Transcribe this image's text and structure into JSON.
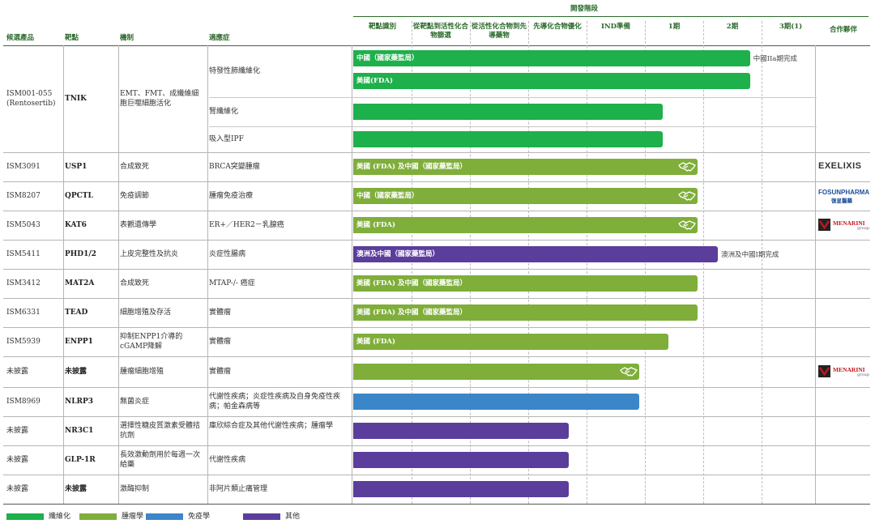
{
  "header": {
    "stage_group": "開發階段",
    "candidate": "候選產品",
    "target": "靶點",
    "mechanism": "機制",
    "indication": "適應症",
    "partner": "合作夥伴",
    "stages": [
      "靶點識別",
      "從靶點到活性化合物篩選",
      "從活性化合物到先導藥物",
      "先導化合物優化",
      "IND準備",
      "1期",
      "2期",
      "3期(1)"
    ]
  },
  "colors": {
    "fibrosis": "#1db04b",
    "oncology": "#7fae3a",
    "immunology": "#3b86c8",
    "other": "#5b3d9c",
    "header_text": "#2b6a2b"
  },
  "partners": {
    "exelixis": "EXELIXIS",
    "fosun_main": "FOSUNPHARMA",
    "fosun_sub": "復星醫藥",
    "menarini": "MENARINI",
    "menarini_sub": "group"
  },
  "rows": [
    {
      "candidate": "ISM001-055",
      "candidate_sub": "(Rentosertib)",
      "target": "TNIK",
      "mechanism": "EMT、FMT、成纖維細胞巨噬細胞活化",
      "indications": [
        {
          "text": "特發性肺纖維化",
          "bars": [
            {
              "label": "中國（國家藥監局）",
              "end": 6.8,
              "category": "fibrosis",
              "note": "中國IIa期完成"
            },
            {
              "label": "美國(FDA)",
              "end": 6.8,
              "category": "fibrosis"
            }
          ]
        },
        {
          "text": "腎纖維化",
          "bars": [
            {
              "label": "",
              "end": 5.3,
              "category": "fibrosis"
            }
          ]
        },
        {
          "text": "吸入型IPF",
          "bars": [
            {
              "label": "",
              "end": 5.3,
              "category": "fibrosis"
            }
          ]
        }
      ]
    },
    {
      "candidate": "ISM3091",
      "target": "USP1",
      "mechanism": "合成致死",
      "partner": "exelixis",
      "indications": [
        {
          "text": "BRCA突變腫瘤",
          "bars": [
            {
              "label": "美國 (FDA) 及中國（國家藥監局）",
              "end": 5.9,
              "category": "oncology",
              "deal": true
            }
          ]
        }
      ]
    },
    {
      "candidate": "ISM8207",
      "target": "QPCTL",
      "mechanism": "免疫調節",
      "partner": "fosun",
      "indications": [
        {
          "text": "腫瘤免疫治療",
          "bars": [
            {
              "label": "中國（國家藥監局）",
              "end": 5.9,
              "category": "oncology",
              "deal": true
            }
          ]
        }
      ]
    },
    {
      "candidate": "ISM5043",
      "target": "KAT6",
      "mechanism": "表觀遺傳學",
      "partner": "menarini",
      "indications": [
        {
          "text": "ER+／HER2－乳腺癌",
          "bars": [
            {
              "label": "美國 (FDA)",
              "end": 5.9,
              "category": "oncology",
              "deal": true
            }
          ]
        }
      ]
    },
    {
      "candidate": "ISM5411",
      "target": "PHD1/2",
      "mechanism": "上皮完整性及抗炎",
      "indications": [
        {
          "text": "炎症性腸病",
          "bars": [
            {
              "label": "澳洲及中國（國家藥監局）",
              "end": 6.25,
              "category": "other",
              "note": "澳洲及中國I期完成"
            }
          ]
        }
      ]
    },
    {
      "candidate": "ISM3412",
      "target": "MAT2A",
      "mechanism": "合成致死",
      "indications": [
        {
          "text": "MTAP-/- 癌症",
          "bars": [
            {
              "label": "美國 (FDA) 及中國（國家藥監局）",
              "end": 5.9,
              "category": "oncology"
            }
          ]
        }
      ]
    },
    {
      "candidate": "ISM6331",
      "target": "TEAD",
      "mechanism": "細胞增殖及存活",
      "indications": [
        {
          "text": "實體瘤",
          "bars": [
            {
              "label": "美國 (FDA) 及中國（國家藥監局）",
              "end": 5.9,
              "category": "oncology"
            }
          ]
        }
      ]
    },
    {
      "candidate": "ISM5939",
      "target": "ENPP1",
      "mechanism": "抑制ENPP1介導的cGAMP降解",
      "indications": [
        {
          "text": "實體瘤",
          "bars": [
            {
              "label": "美國 (FDA)",
              "end": 5.4,
              "category": "oncology"
            }
          ]
        }
      ]
    },
    {
      "candidate": "未披露",
      "target": "未披露",
      "mechanism": "腫瘤細胞增殖",
      "partner": "menarini",
      "indications": [
        {
          "text": "實體瘤",
          "bars": [
            {
              "label": "",
              "end": 4.9,
              "category": "oncology",
              "deal": true
            }
          ]
        }
      ]
    },
    {
      "candidate": "ISM8969",
      "target": "NLRP3",
      "mechanism": "無菌炎症",
      "indications": [
        {
          "text": "代謝性疾病；炎症性疾病及自身免疫性疾病；帕金森病等",
          "bars": [
            {
              "label": "",
              "end": 4.9,
              "category": "immunology"
            }
          ]
        }
      ]
    },
    {
      "candidate": "未披露",
      "target": "NR3C1",
      "mechanism": "選擇性糖皮質激素受體拮抗劑",
      "indications": [
        {
          "text": "庫欣綜合症及其他代謝性疾病；腫瘤學",
          "bars": [
            {
              "label": "",
              "end": 3.7,
              "category": "other"
            }
          ]
        }
      ]
    },
    {
      "candidate": "未披露",
      "target": "GLP-1R",
      "mechanism": "長效激動劑用於每週一次給藥",
      "indications": [
        {
          "text": "代謝性疾病",
          "bars": [
            {
              "label": "",
              "end": 3.7,
              "category": "other"
            }
          ]
        }
      ]
    },
    {
      "candidate": "未披露",
      "target": "未披露",
      "mechanism": "激酶抑制",
      "indications": [
        {
          "text": "非阿片類止痛管理",
          "bars": [
            {
              "label": "",
              "end": 3.7,
              "category": "other"
            }
          ]
        }
      ]
    }
  ],
  "legend": [
    {
      "key": "fibrosis",
      "label": "纖維化"
    },
    {
      "key": "oncology",
      "label": "腫瘤學"
    },
    {
      "key": "immunology",
      "label": "免疫學"
    },
    {
      "key": "other",
      "label": "其他"
    }
  ],
  "chart_data": {
    "type": "bar",
    "orientation": "horizontal",
    "stages": [
      "靶點識別",
      "從靶點到活性化合物篩選",
      "從活性化合物到先導藥物",
      "先導化合物優化",
      "IND準備",
      "1期",
      "2期",
      "3期(1)"
    ],
    "legend": [
      "纖維化",
      "腫瘤學",
      "免疫學",
      "其他"
    ],
    "legend_position": "bottom-left"
  }
}
